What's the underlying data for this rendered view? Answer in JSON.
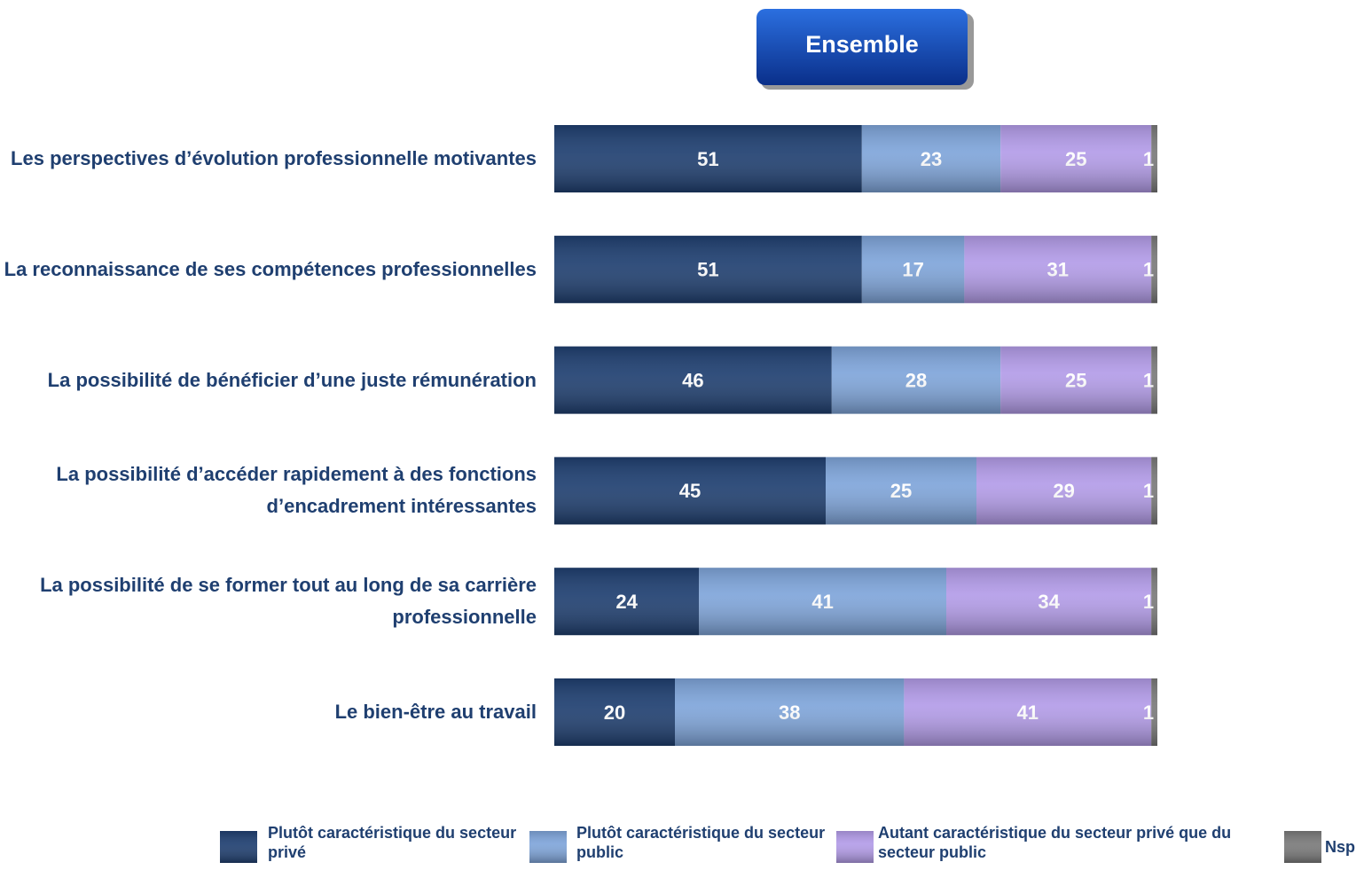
{
  "chart_data": {
    "type": "stacked-bar",
    "orientation": "horizontal",
    "title": "Ensemble",
    "categories": [
      "Les perspectives d’évolution professionnelle motivantes",
      "La reconnaissance de ses compétences professionnelles",
      "La possibilité de bénéficier d’une juste rémunération",
      "La possibilité d’accéder rapidement à des fonctions d’encadrement intéressantes",
      "La possibilité de se former tout au long de sa carrière professionnelle",
      "Le bien-être au travail"
    ],
    "series": [
      {
        "name": "Plutôt caractéristique du secteur privé",
        "color": "#1f3f70",
        "values": [
          51,
          51,
          46,
          45,
          24,
          20
        ]
      },
      {
        "name": "Plutôt caractéristique du secteur public",
        "color": "#7fa5da",
        "values": [
          23,
          17,
          28,
          25,
          41,
          38
        ]
      },
      {
        "name": "Autant caractéristique du secteur privé que du secteur public",
        "color": "#b39ce8",
        "values": [
          25,
          31,
          25,
          29,
          34,
          41
        ]
      },
      {
        "name": "Nsp",
        "color": "#7a7a7a",
        "values": [
          1,
          1,
          1,
          1,
          1,
          1
        ]
      }
    ],
    "xlim": [
      0,
      100
    ]
  }
}
